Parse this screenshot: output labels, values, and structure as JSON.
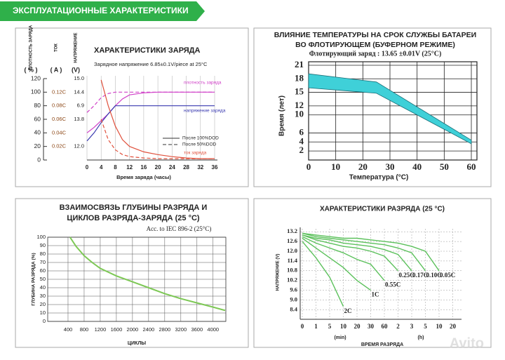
{
  "header": {
    "title": "ЭКСПЛУАТАЦИОННЫЕ ХАРАКТЕРИСТИКИ"
  },
  "watermark": "Avito",
  "chart_data": [
    {
      "type": "line",
      "title": "ХАРАКТЕРИСТИКИ ЗАРЯДА",
      "subtitle": "Зарядное напряжение  6.85±0.1V/piece at 25°C",
      "xlabel": "Время заряда (часы)",
      "ylabel_columns": [
        {
          "label": "ПЛОТНОСТЬ ЗАРЯДА",
          "unit": "( % )"
        },
        {
          "label": "ТОК",
          "unit": "( A )"
        },
        {
          "label": "НАПРЯЖЕНИЕ",
          "unit": "(V)"
        }
      ],
      "x": [
        0,
        2,
        4,
        6,
        8,
        10,
        12,
        16,
        20,
        24,
        28,
        32,
        36
      ],
      "xlim": [
        0,
        36
      ],
      "xticks": [
        0,
        4,
        8,
        12,
        16,
        20,
        24,
        28,
        32,
        36
      ],
      "ylim": [
        0,
        120
      ],
      "yticks": [
        0,
        20,
        40,
        60,
        80,
        100,
        120
      ],
      "current_ticks": [
        null,
        "0.02C",
        "0.04C",
        "0.06C",
        "0.08C",
        "0.12C",
        null
      ],
      "voltage_ticks": [
        null,
        "12.0",
        null,
        "13.8",
        "6.9",
        "14.4",
        "15.0"
      ],
      "series": [
        {
          "color": "#d040c8",
          "dashed": false,
          "values": [
            40,
            48,
            58,
            68,
            80,
            90,
            96,
            99,
            100,
            100,
            100,
            100,
            100
          ]
        },
        {
          "color": "#d040c8",
          "dashed": true,
          "values": [
            70,
            80,
            92,
            98,
            100,
            100,
            100,
            100,
            100,
            100,
            100,
            100,
            100
          ]
        },
        {
          "color": "#3a3ab0",
          "dashed": false,
          "values": [
            28,
            40,
            55,
            68,
            80,
            80,
            80,
            80,
            80,
            80,
            80,
            80,
            80
          ]
        },
        {
          "color": "#e0503c",
          "dashed": false,
          "values": [
            null,
            null,
            118,
            80,
            50,
            30,
            20,
            12,
            8,
            5,
            3,
            2,
            2
          ]
        },
        {
          "color": "#e0503c",
          "dashed": true,
          "values": [
            null,
            null,
            60,
            30,
            15,
            8,
            5,
            3,
            2,
            2,
            2,
            2,
            2
          ]
        }
      ],
      "legend": [
        {
          "label": "После 100%DOD",
          "dashed": false
        },
        {
          "label": "После 50%DOD",
          "dashed": true
        }
      ],
      "annotations": [
        {
          "text": "плотность заряда",
          "color": "#d040c8"
        },
        {
          "text": "напряжение заряда",
          "color": "#3a3ab0"
        },
        {
          "text": "ток заряда",
          "color": "#e0503c"
        }
      ],
      "grid": true
    },
    {
      "type": "area",
      "title": [
        "ВЛИЯНИЕ ТЕМПЕРАТУРЫ НА СРОК СЛУЖБЫ БАТАРЕИ",
        "ВО ФЛОТИРУЮЩЕМ (БУФЕРНОМ РЕЖИМЕ)"
      ],
      "subtitle": "Флотирующий заряд : 13.65 ±0.01V (25°C)",
      "xlabel": "Температура (°C)",
      "ylabel": "Время (лет)",
      "x": [
        0,
        25,
        60
      ],
      "series": [
        {
          "values": [
            19.1,
            17.3,
            4.4
          ]
        },
        {
          "values": [
            16,
            14.8,
            3.6
          ]
        }
      ],
      "color": "#3fd0d8",
      "xlim": [
        0,
        60
      ],
      "xticks": [
        0,
        10,
        20,
        30,
        40,
        50,
        60
      ],
      "ylim": [
        0,
        21
      ],
      "yticks": [
        2,
        4,
        6,
        10,
        12,
        15,
        18,
        21
      ],
      "grid": true
    },
    {
      "type": "line",
      "title": [
        "ВЗАИМОСВЯЗЬ ГЛУБИНЫ РАЗРЯДА И",
        "ЦИКЛОВ РАЗРЯДА-ЗАРЯДА (25 °C)"
      ],
      "annotation": "Acc. to IEC 896-2 (25°C)",
      "xlabel": "ЦИКЛЫ",
      "ylabel": "ГЛУБИНА РАЗРЯДА (%)",
      "x": [
        450,
        600,
        800,
        1000,
        1200,
        1600,
        2000,
        2400,
        2800,
        3200,
        3600,
        4000,
        4300
      ],
      "values": [
        100,
        89,
        78,
        70,
        63,
        54,
        47,
        40,
        33,
        27,
        22,
        17,
        13
      ],
      "color": "#7dc855",
      "xlim": [
        0,
        4300
      ],
      "xticks": [
        400,
        800,
        1200,
        1600,
        2000,
        2400,
        2800,
        3200,
        3600,
        4000
      ],
      "ylim": [
        0,
        100
      ],
      "yticks": [
        0,
        10,
        20,
        30,
        40,
        50,
        60,
        70,
        80,
        90,
        100
      ],
      "grid": true
    },
    {
      "type": "line",
      "title": "ХАРАКТЕРИСТИКИ РАЗРЯДА (25 °C)",
      "xlabel": "ВРЕМЯ РАЗРЯДА",
      "ylabel": "НАПРЯЖЕНИЕ (V)",
      "categories": [
        "0",
        "1",
        "5",
        "10",
        "20",
        "30",
        "60",
        "2",
        "3",
        "5",
        "10",
        "20"
      ],
      "x_units": [
        "(min)",
        "(h)"
      ],
      "color": "#5cc15c",
      "series": [
        {
          "name": "2C",
          "values": [
            12.6,
            11.6,
            10.4,
            8.6,
            null,
            null,
            null,
            null,
            null,
            null,
            null,
            null
          ]
        },
        {
          "name": "1C",
          "values": [
            12.8,
            12.2,
            11.6,
            11.0,
            10.2,
            9.6,
            null,
            null,
            null,
            null,
            null,
            null
          ]
        },
        {
          "name": "0.55C",
          "values": [
            12.9,
            12.5,
            12.2,
            11.9,
            11.5,
            11.2,
            10.2,
            null,
            null,
            null,
            null,
            null
          ]
        },
        {
          "name": "0.25C",
          "values": [
            13.0,
            12.7,
            12.5,
            12.3,
            12.2,
            12.0,
            11.7,
            10.8,
            null,
            null,
            null,
            null
          ]
        },
        {
          "name": "0.17C",
          "values": [
            13.0,
            12.8,
            12.7,
            12.5,
            12.4,
            12.3,
            12.1,
            11.8,
            10.8,
            null,
            null,
            null
          ]
        },
        {
          "name": "0.10C",
          "values": [
            13.1,
            12.9,
            12.8,
            12.7,
            12.6,
            12.5,
            12.4,
            12.2,
            11.9,
            10.8,
            null,
            null
          ]
        },
        {
          "name": "0.05C",
          "values": [
            13.1,
            13.0,
            12.9,
            12.8,
            12.8,
            12.7,
            12.6,
            12.5,
            12.3,
            12.0,
            10.8,
            null
          ]
        }
      ],
      "ylim": [
        8.0,
        13.4
      ],
      "yticks": [
        13.2,
        12.6,
        {
          "value": 12,
          "label": "12.0"
        },
        11.4,
        10.8,
        10.2,
        9.6,
        {
          "value": 9,
          "label": "9.0"
        },
        8.4
      ],
      "grid": true
    }
  ]
}
